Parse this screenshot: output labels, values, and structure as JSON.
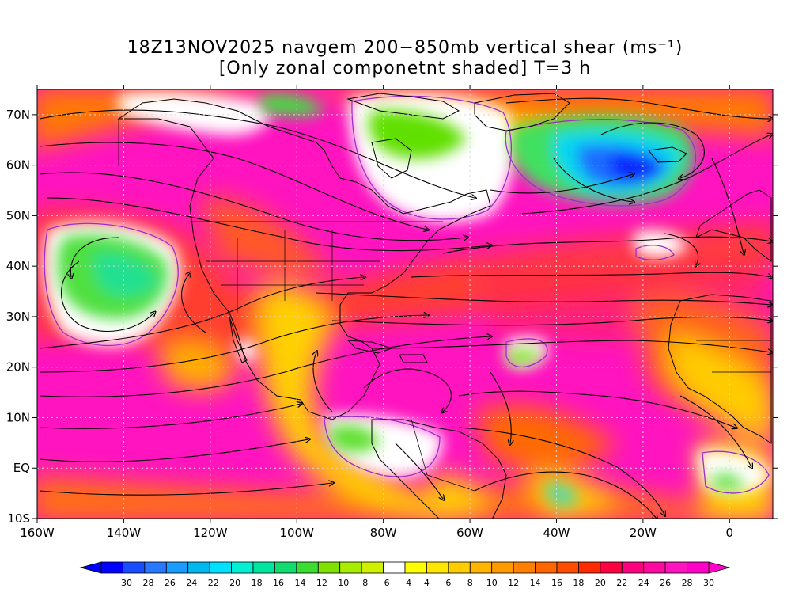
{
  "title": {
    "line1": "18Z13NOV2025 navgem 200−850mb vertical shear (ms⁻¹)",
    "line2": "[Only zonal componetnt shaded] T=3 h"
  },
  "map": {
    "region": "North Atlantic / Americas",
    "lon_range": [
      -160,
      10
    ],
    "lat_range": [
      -10,
      75
    ],
    "grid": "dotted",
    "lat_labels": [
      "70N",
      "60N",
      "50N",
      "40N",
      "30N",
      "20N",
      "10N",
      "EQ",
      "10S"
    ],
    "lat_values": [
      70,
      60,
      50,
      40,
      30,
      20,
      10,
      0,
      -10
    ],
    "lon_labels": [
      "160W",
      "140W",
      "120W",
      "100W",
      "80W",
      "60W",
      "40W",
      "20W",
      "0"
    ],
    "lon_values": [
      -160,
      -140,
      -120,
      -100,
      -80,
      -60,
      -40,
      -20,
      0
    ],
    "features": {
      "shading": "zonal component of 200-850mb vertical shear",
      "overlay": "black streamlines with arrowheads",
      "contour_color": "#9b30c8",
      "coastline_color": "#000000",
      "grid_color": "#cccccc"
    }
  },
  "colorbar": {
    "labels": [
      "−30",
      "−28",
      "−26",
      "−24",
      "−22",
      "−20",
      "−18",
      "−16",
      "−14",
      "−12",
      "−10",
      "−8",
      "−6",
      "−4",
      "4",
      "6",
      "8",
      "10",
      "12",
      "14",
      "16",
      "18",
      "20",
      "22",
      "24",
      "26",
      "28",
      "30"
    ],
    "colors": [
      "#0000ff",
      "#1a4cff",
      "#2a78ff",
      "#1a9bff",
      "#00b8f0",
      "#00e0ff",
      "#00f0d0",
      "#00e6a0",
      "#10dc70",
      "#3cdc30",
      "#80e000",
      "#a8ec00",
      "#d0f000",
      "#ffffff",
      "#ffff00",
      "#ffe600",
      "#ffcc00",
      "#ffb400",
      "#ff9a00",
      "#ff8000",
      "#ff6600",
      "#ff4d00",
      "#ff2a00",
      "#ff0040",
      "#ff0080",
      "#ff0aa0",
      "#ff14c0",
      "#ff00c8"
    ]
  }
}
